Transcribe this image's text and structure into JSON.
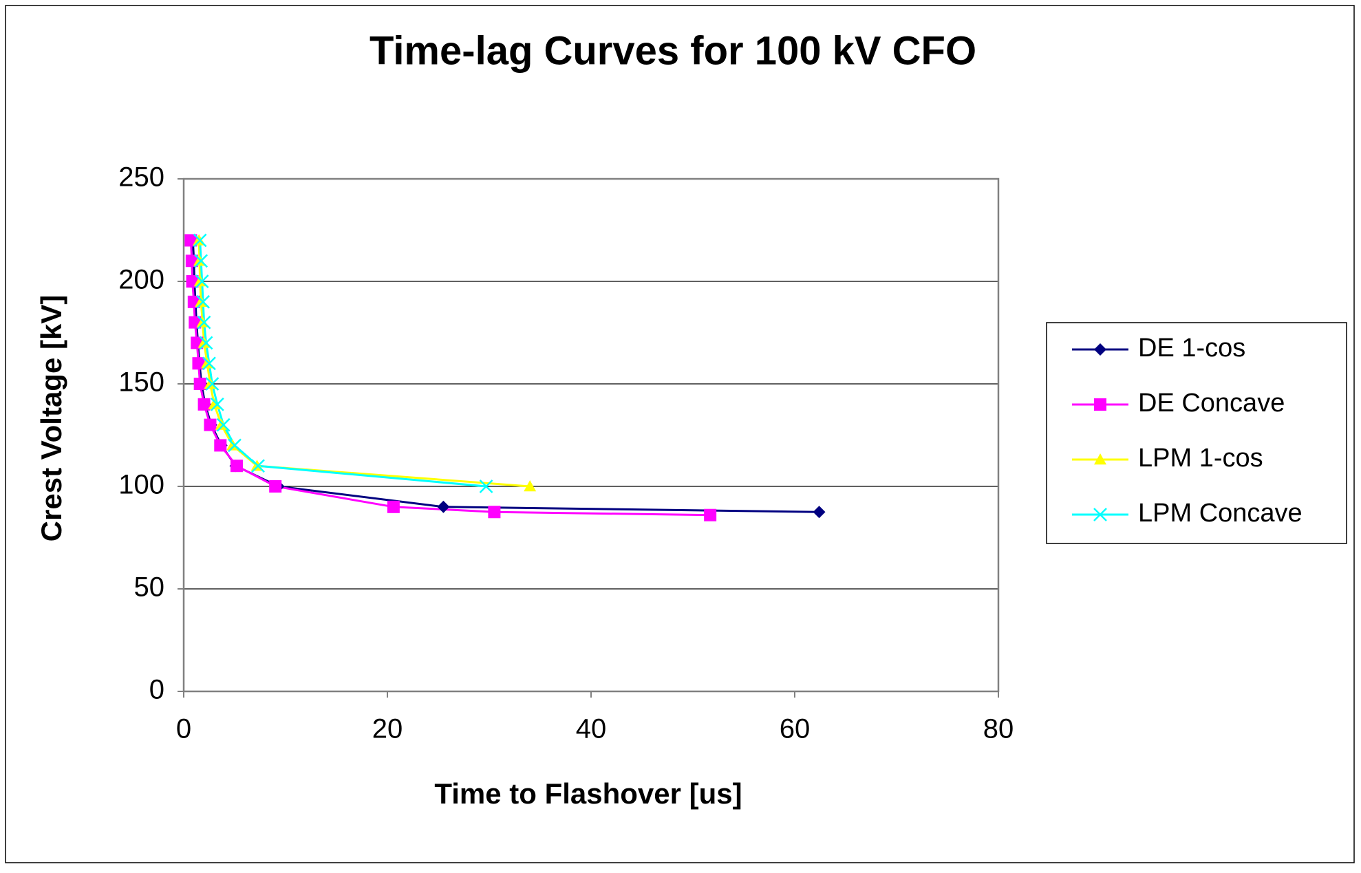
{
  "chart_data": {
    "type": "line",
    "title": "Time-lag Curves for 100 kV CFO",
    "x_label": "Time to Flashover [us]",
    "y_label": "Crest Voltage [kV]",
    "xlim": [
      0,
      80
    ],
    "xticks": [
      0,
      20,
      40,
      60,
      80
    ],
    "ylim": [
      0,
      250
    ],
    "yticks": [
      0,
      50,
      100,
      150,
      200,
      250
    ],
    "grid": true,
    "legend": "right",
    "series": [
      {
        "name": "DE 1-cos",
        "color": "#000080",
        "marker": "diamond",
        "x": [
          0.9,
          1.0,
          1.05,
          1.15,
          1.25,
          1.4,
          1.55,
          1.75,
          2.1,
          2.7,
          3.7,
          5.1,
          9.3,
          25.5,
          62.4
        ],
        "values": [
          220,
          210,
          200,
          190,
          180,
          170,
          160,
          150,
          140,
          130,
          120,
          110,
          100,
          90,
          87.5
        ]
      },
      {
        "name": "DE Concave",
        "color": "#ff00ff",
        "marker": "square",
        "x": [
          0.7,
          0.8,
          0.85,
          1.0,
          1.1,
          1.3,
          1.45,
          1.6,
          2.0,
          2.6,
          3.6,
          5.2,
          9.0,
          20.6,
          30.5,
          51.7
        ],
        "values": [
          220,
          210,
          200,
          190,
          180,
          170,
          160,
          150,
          140,
          130,
          120,
          110,
          100,
          90,
          87.5,
          86
        ]
      },
      {
        "name": "LPM 1-cos",
        "color": "#ffff00",
        "marker": "triangle",
        "x": [
          1.5,
          1.55,
          1.6,
          1.7,
          1.85,
          2.0,
          2.3,
          2.6,
          3.0,
          3.7,
          4.8,
          7.2,
          34.0
        ],
        "values": [
          220,
          210,
          200,
          190,
          180,
          170,
          160,
          150,
          140,
          130,
          120,
          110,
          100
        ]
      },
      {
        "name": "LPM Concave",
        "color": "#00ffff",
        "marker": "x",
        "x": [
          1.6,
          1.7,
          1.8,
          1.9,
          2.0,
          2.2,
          2.5,
          2.8,
          3.3,
          3.9,
          5.0,
          7.3,
          29.7
        ],
        "values": [
          220,
          210,
          200,
          190,
          180,
          170,
          160,
          150,
          140,
          130,
          120,
          110,
          100
        ]
      }
    ]
  }
}
